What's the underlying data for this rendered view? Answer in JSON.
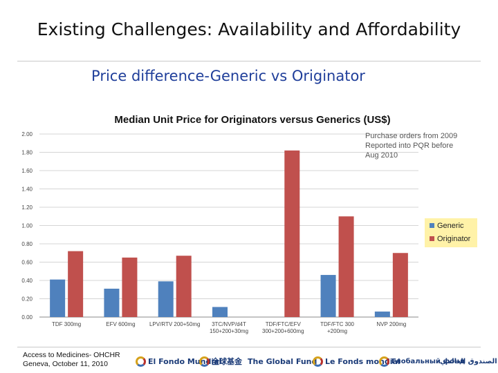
{
  "slide": {
    "title": "Existing Challenges: Availability and Affordability",
    "subtitle": "Price difference-Generic vs Originator"
  },
  "footer": {
    "line1": "Access to Medicines- OHCHR",
    "line2": "Geneva, October 11, 2010",
    "logos": [
      "El Fondo Mundial",
      "全球基金",
      "The Global Fund",
      "Le Fonds mondial",
      "Глобальный фонд",
      "الصندوق العالمي"
    ]
  },
  "chart_data": {
    "type": "bar",
    "title": "Median Unit Price for Originators versus Generics (US$)",
    "annotation": [
      "Purchase orders from 2009",
      "Reported into PQR before",
      "Aug 2010"
    ],
    "categories": [
      [
        "TDF 300mg"
      ],
      [
        "EFV 600mg"
      ],
      [
        "LPV/RTV 200+50mg"
      ],
      [
        "3TC/NVP/d4T",
        "150+200+30mg"
      ],
      [
        "TDF/FTC/EFV",
        "300+200+600mg"
      ],
      [
        "TDF/FTC 300",
        "+200mg"
      ],
      [
        "NVP 200mg"
      ]
    ],
    "series": [
      {
        "name": "Generic",
        "color": "#4f81bd",
        "values": [
          0.41,
          0.31,
          0.39,
          0.11,
          null,
          0.46,
          0.06
        ]
      },
      {
        "name": "Originator",
        "color": "#c0504d",
        "values": [
          0.72,
          0.65,
          0.67,
          null,
          1.82,
          1.1,
          0.7
        ]
      }
    ],
    "ylim": [
      0,
      2.0
    ],
    "yticks": [
      "0.00",
      "0.20",
      "0.40",
      "0.60",
      "0.80",
      "1.00",
      "1.20",
      "1.40",
      "1.60",
      "1.80",
      "2.00"
    ],
    "grid": true,
    "legend_position": "right",
    "legend_bg": "#fff2a8"
  }
}
